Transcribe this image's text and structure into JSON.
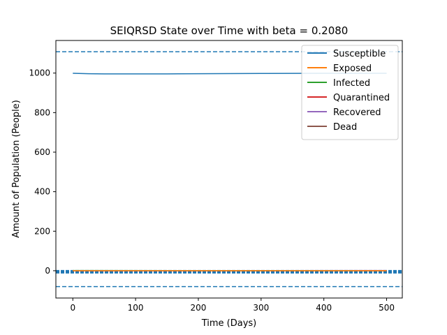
{
  "chart_data": {
    "type": "line",
    "title": "SEIQRSD State over Time with beta = 0.2080",
    "xlabel": "Time (Days)",
    "ylabel": "Amount of Population (People)",
    "xlim": [
      -27,
      525
    ],
    "ylim": [
      -138,
      1165
    ],
    "xticks": [
      0,
      100,
      200,
      300,
      400,
      500
    ],
    "yticks": [
      0,
      200,
      400,
      600,
      800,
      1000
    ],
    "grid": false,
    "legend_position": "top-right",
    "series": [
      {
        "name": "Susceptible",
        "color": "#1f77b4",
        "x": [
          0,
          25,
          50,
          100,
          150,
          200,
          300,
          400,
          500
        ],
        "y": [
          999,
          997,
          996,
          996,
          996,
          997,
          998,
          999,
          999
        ]
      },
      {
        "name": "Exposed",
        "color": "#ff7f0e",
        "x": [
          0,
          500
        ],
        "y": [
          0,
          0
        ]
      },
      {
        "name": "Infected",
        "color": "#2ca02c",
        "x": [
          0,
          500
        ],
        "y": [
          1,
          0
        ]
      },
      {
        "name": "Quarantined",
        "color": "#d62728",
        "x": [
          0,
          500
        ],
        "y": [
          0,
          0
        ]
      },
      {
        "name": "Recovered",
        "color": "#9467bd",
        "x": [
          0,
          500
        ],
        "y": [
          0,
          1
        ]
      },
      {
        "name": "Dead",
        "color": "#8c564b",
        "x": [
          0,
          500
        ],
        "y": [
          0,
          0
        ]
      }
    ],
    "reference_lines": [
      {
        "y": 1108,
        "color": "#1f77b4",
        "style": "dashed"
      },
      {
        "y": -5,
        "color": "#1f77b4",
        "style": "dotted"
      },
      {
        "y": -80,
        "color": "#1f77b4",
        "style": "dashed"
      }
    ]
  }
}
